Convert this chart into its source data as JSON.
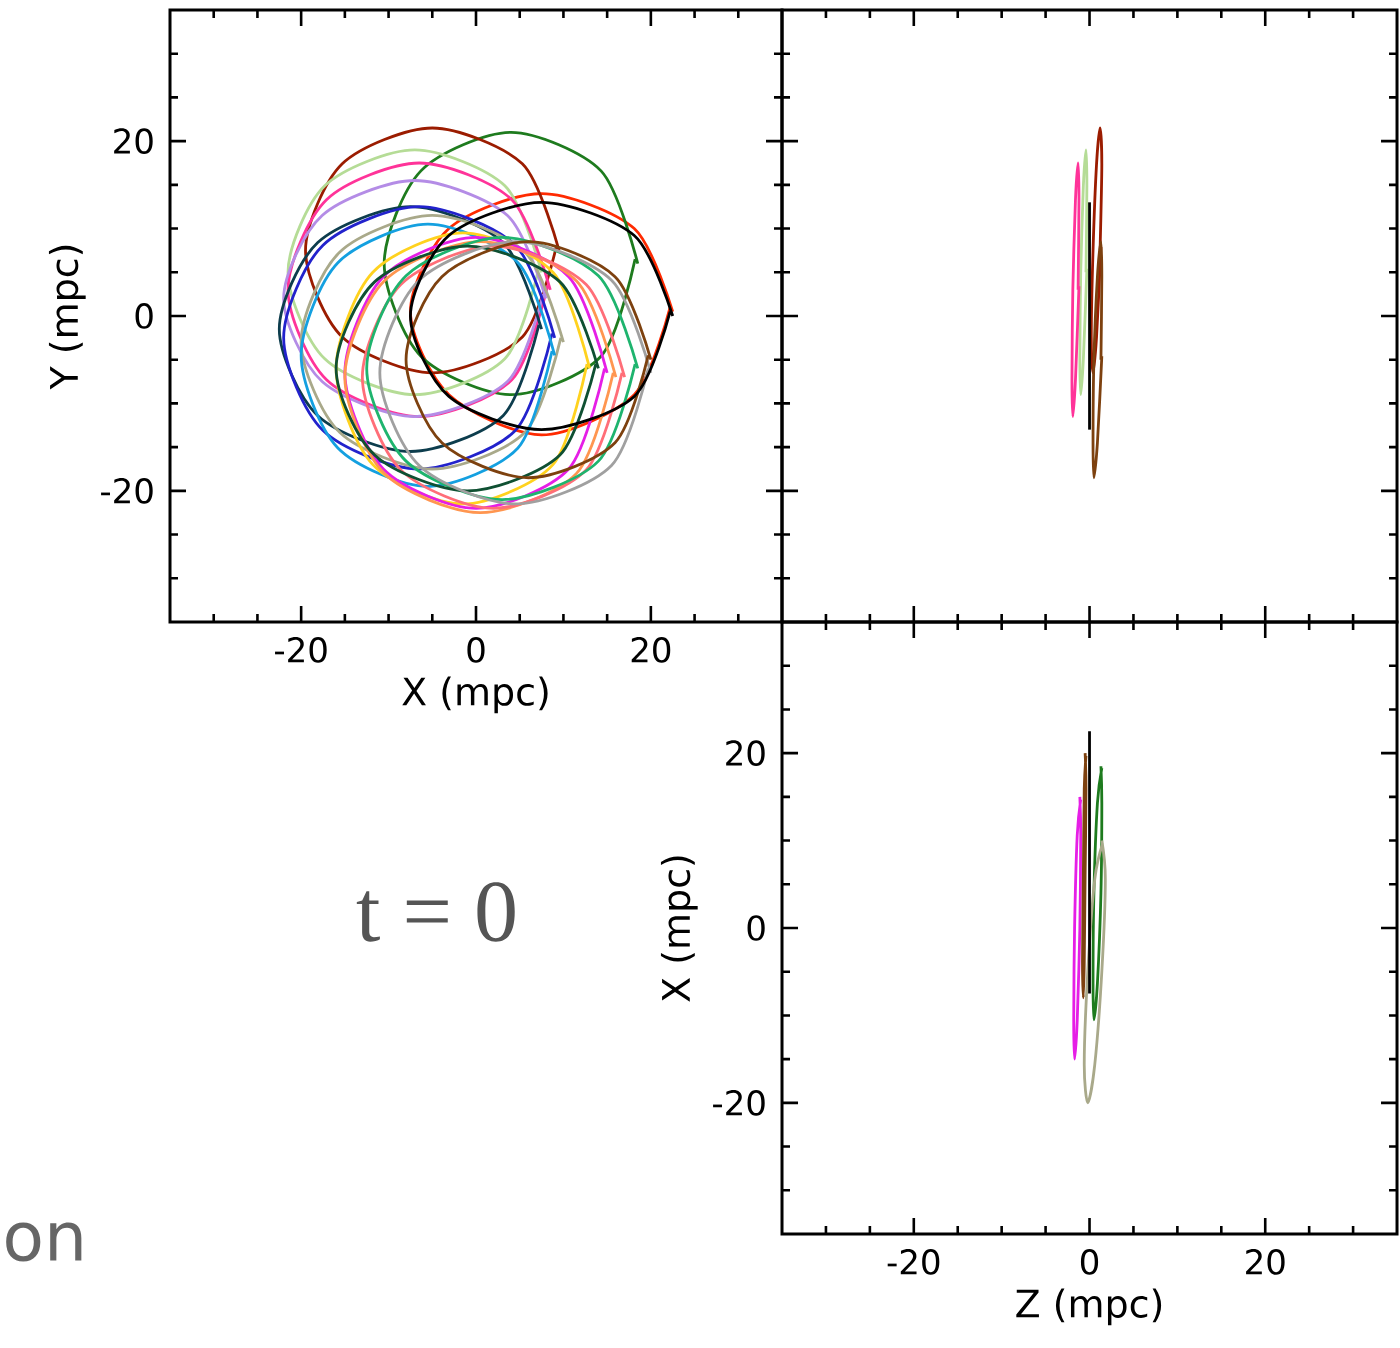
{
  "chart_data": [
    {
      "type": "line",
      "xlabel": "X  (mpc)",
      "ylabel": "Y  (mpc)",
      "xlim": [
        -35,
        35
      ],
      "ylim": [
        -35,
        35
      ],
      "xticks": [
        {
          "value": -30,
          "label": null
        },
        {
          "value": -25,
          "label": null
        },
        -20,
        {
          "value": -15,
          "label": null
        },
        {
          "value": -10,
          "label": null
        },
        {
          "value": -5,
          "label": null
        },
        0,
        {
          "value": 5,
          "label": null
        },
        {
          "value": 10,
          "label": null
        },
        {
          "value": 15,
          "label": null
        },
        20,
        {
          "value": 25,
          "label": null
        },
        {
          "value": 30,
          "label": null
        }
      ],
      "yticks": [
        {
          "value": -30,
          "label": null
        },
        {
          "value": -25,
          "label": null
        },
        -20,
        {
          "value": -15,
          "label": null
        },
        {
          "value": -10,
          "label": null
        },
        {
          "value": -5,
          "label": null
        },
        0,
        {
          "value": 5,
          "label": null
        },
        {
          "value": 10,
          "label": null
        },
        {
          "value": 15,
          "label": null
        },
        20,
        {
          "value": 25,
          "label": null
        },
        {
          "value": 30,
          "label": null
        }
      ],
      "series": [
        {
          "color": "#ff2a00",
          "x": [
            22.5,
            18.1,
            7.5,
            -3.1,
            -7.5,
            -3.1,
            7.5,
            18.1,
            22.2
          ],
          "values": [
            0.5,
            10,
            14,
            10,
            0.5,
            -9,
            -13.6,
            -9,
            1
          ]
        },
        {
          "color": "#1e7b1e",
          "x": [
            18.5,
            14.3,
            4,
            -6.3,
            -10.5,
            -6.3,
            4,
            14.3,
            18.2
          ],
          "values": [
            6,
            16.6,
            21,
            16.6,
            6,
            -4.6,
            -9,
            -4.6,
            6.5
          ]
        },
        {
          "color": "#9b1c00",
          "x": [
            9.5,
            5.3,
            -5,
            -15.3,
            -19.5,
            -15.3,
            -5,
            5.3,
            9.2
          ],
          "values": [
            7.5,
            17.4,
            21.5,
            17.4,
            7.5,
            -2.4,
            -6.5,
            -2.4,
            8
          ]
        },
        {
          "color": "#b5dc96",
          "x": [
            7.5,
            3.3,
            -7,
            -17.3,
            -21.5,
            -17.3,
            -7,
            3.3,
            7.2
          ],
          "values": [
            5,
            14.9,
            19,
            14.9,
            5,
            -4.9,
            -9,
            -4.9,
            5.5
          ]
        },
        {
          "color": "#ff3399",
          "x": [
            8.5,
            4.1,
            -6.5,
            -17.1,
            -21.5,
            -17.1,
            -6.5,
            4.1,
            8.2
          ],
          "values": [
            3,
            13.3,
            17.5,
            13.3,
            3,
            -7.3,
            -11.5,
            -7.3,
            3.5
          ]
        },
        {
          "color": "#b48ce6",
          "x": [
            8,
            3.6,
            -7,
            -17.6,
            -22,
            -17.6,
            -7,
            3.6,
            7.7
          ],
          "values": [
            2,
            11.5,
            15.5,
            11.5,
            2,
            -7.5,
            -11.5,
            -7.5,
            2.5
          ]
        },
        {
          "color": "#0d3d4d",
          "x": [
            7.5,
            3.1,
            -7.5,
            -18.1,
            -22.5,
            -18.1,
            -7.5,
            3.1,
            7.2
          ],
          "values": [
            -1.5,
            8.4,
            12.5,
            8.4,
            -1.5,
            -11.4,
            -15.5,
            -11.4,
            -1
          ]
        },
        {
          "color": "#2222cc",
          "x": [
            9,
            4.5,
            -6.5,
            -17.5,
            -22,
            -17.5,
            -6.5,
            4.5,
            8.7
          ],
          "values": [
            -2.5,
            8.1,
            12.5,
            8.1,
            -2.5,
            -13.1,
            -17.5,
            -13.1,
            -2
          ]
        },
        {
          "color": "#a9a98a",
          "x": [
            10,
            5.6,
            -5,
            -15.6,
            -20,
            -15.6,
            -5,
            5.6,
            9.7
          ],
          "values": [
            -3,
            7.3,
            11.5,
            7.3,
            -3,
            -13.3,
            -17.5,
            -13.3,
            -2.5
          ]
        },
        {
          "color": "#14a0e0",
          "x": [
            9,
            4.8,
            -5.5,
            -15.8,
            -20,
            -15.8,
            -5.5,
            4.8,
            8.7
          ],
          "values": [
            -4.5,
            6.1,
            10.5,
            6.1,
            -4.5,
            -15.1,
            -19.5,
            -15.1,
            -4
          ]
        },
        {
          "color": "#ffd21e",
          "x": [
            13,
            8.8,
            -1.5,
            -11.8,
            -16,
            -11.8,
            -1.5,
            8.8,
            12.7
          ],
          "values": [
            -6,
            5,
            9.5,
            5,
            -6,
            -17,
            -21.5,
            -17,
            -5.5
          ]
        },
        {
          "color": "#e61ee6",
          "x": [
            15,
            10.6,
            0,
            -10.6,
            -15,
            -10.6,
            0,
            10.6,
            14.7
          ],
          "values": [
            -6.5,
            4.5,
            9,
            4.5,
            -6.5,
            -17.5,
            -22,
            -17.5,
            -6
          ]
        },
        {
          "color": "#ff9650",
          "x": [
            16,
            11.5,
            0.5,
            -10.5,
            -15,
            -10.5,
            0.5,
            11.5,
            15.7
          ],
          "values": [
            -7,
            4,
            8.5,
            4,
            -7,
            -18,
            -22.5,
            -18,
            -6.5
          ]
        },
        {
          "color": "#ff6e78",
          "x": [
            17,
            12.6,
            2,
            -8.6,
            -13,
            -8.6,
            2,
            12.6,
            16.7
          ],
          "values": [
            -7,
            3.6,
            8,
            3.6,
            -7,
            -17.6,
            -22,
            -17.6,
            -6.5
          ]
        },
        {
          "color": "#1eb46e",
          "x": [
            18.5,
            14,
            3,
            -8,
            -12.5,
            -8,
            3,
            14,
            18.2
          ],
          "values": [
            -6,
            4.6,
            9,
            4.6,
            -6,
            -16.6,
            -21,
            -16.6,
            -5.5
          ]
        },
        {
          "color": "#0f5032",
          "x": [
            14,
            9.6,
            -1,
            -11.6,
            -16,
            -11.6,
            -1,
            9.6,
            13.7
          ],
          "values": [
            -6,
            3.9,
            8,
            3.9,
            -6,
            -15.9,
            -20,
            -15.9,
            -5.5
          ]
        },
        {
          "color": "#a0a0a0",
          "x": [
            20,
            15.5,
            4.5,
            -6.5,
            -11,
            -6.5,
            4.5,
            15.5,
            19.7
          ],
          "values": [
            -6.5,
            4.1,
            8.5,
            4.1,
            -6.5,
            -17.1,
            -21.5,
            -17.1,
            -6
          ]
        },
        {
          "color": "#7d410f",
          "x": [
            20,
            15.9,
            6,
            -3.9,
            -8,
            -3.9,
            6,
            15.9,
            19.7
          ],
          "values": [
            -5,
            4.5,
            8.5,
            4.5,
            -5,
            -14.5,
            -18.5,
            -14.5,
            -4.5
          ]
        },
        {
          "color": "#000000",
          "x": [
            22.5,
            18.1,
            7.5,
            -3.1,
            -7.5,
            -3.1,
            7.5,
            18.1,
            22.2
          ],
          "values": [
            0,
            9.2,
            13,
            9.2,
            0,
            -9.2,
            -13,
            -9.2,
            0.5
          ]
        }
      ]
    },
    {
      "type": "line",
      "tick_labels": false,
      "xlim": [
        -35,
        35
      ],
      "ylim": [
        -35,
        35
      ],
      "xticks": [
        {
          "value": -30,
          "label": null
        },
        {
          "value": -25,
          "label": null
        },
        -20,
        {
          "value": -15,
          "label": null
        },
        {
          "value": -10,
          "label": null
        },
        {
          "value": -5,
          "label": null
        },
        0,
        {
          "value": 5,
          "label": null
        },
        {
          "value": 10,
          "label": null
        },
        {
          "value": 15,
          "label": null
        },
        20,
        {
          "value": 25,
          "label": null
        },
        {
          "value": 30,
          "label": null
        }
      ],
      "yticks": [
        {
          "value": -30,
          "label": null
        },
        {
          "value": -25,
          "label": null
        },
        -20,
        {
          "value": -15,
          "label": null
        },
        {
          "value": -10,
          "label": null
        },
        {
          "value": -5,
          "label": null
        },
        0,
        {
          "value": 5,
          "label": null
        },
        {
          "value": 10,
          "label": null
        },
        {
          "value": 15,
          "label": null
        },
        20,
        {
          "value": 25,
          "label": null
        },
        {
          "value": 30,
          "label": null
        }
      ],
      "series": [
        {
          "color": "#9b1c00",
          "x": [
            1.2,
            1.4,
            1.2,
            0.8,
            0.4,
            0.2,
            0.4,
            0.8,
            1.3
          ],
          "values": [
            7.5,
            17.4,
            21.5,
            17.4,
            7.5,
            -2.4,
            -6.5,
            -2.4,
            7.9
          ]
        },
        {
          "color": "#b5dc96",
          "x": [
            -0.4,
            -0.3,
            -0.4,
            -0.7,
            -1,
            -1.1,
            -1,
            -0.7,
            -0.3
          ],
          "values": [
            5,
            14.9,
            19,
            14.9,
            5,
            -4.9,
            -9,
            -4.9,
            5.4
          ]
        },
        {
          "color": "#ff3399",
          "x": [
            -1.3,
            -1.2,
            -1.3,
            -1.6,
            -1.9,
            -2,
            -1.9,
            -1.6,
            -1.2
          ],
          "values": [
            3,
            13.3,
            17.5,
            13.3,
            3,
            -7.3,
            -11.5,
            -7.3,
            3.4
          ]
        },
        {
          "color": "#7d410f",
          "x": [
            1.3,
            1.4,
            1.3,
            0.9,
            0.5,
            0.4,
            0.5,
            0.9,
            1.4
          ],
          "values": [
            -5,
            4.5,
            8.5,
            4.5,
            -5,
            -14.5,
            -18.5,
            -14.5,
            -4.6
          ]
        },
        {
          "color": "#000000",
          "x": [
            0,
            0,
            0,
            0,
            0
          ],
          "values": [
            13,
            9.2,
            0,
            -9.2,
            -13
          ]
        }
      ]
    },
    {
      "type": "line",
      "xlabel": "Z  (mpc)",
      "ylabel": "X  (mpc)",
      "xlim": [
        -35,
        35
      ],
      "ylim": [
        -35,
        35
      ],
      "xticks": [
        {
          "value": -30,
          "label": null
        },
        {
          "value": -25,
          "label": null
        },
        -20,
        {
          "value": -15,
          "label": null
        },
        {
          "value": -10,
          "label": null
        },
        {
          "value": -5,
          "label": null
        },
        0,
        {
          "value": 5,
          "label": null
        },
        {
          "value": 10,
          "label": null
        },
        {
          "value": 15,
          "label": null
        },
        20,
        {
          "value": 25,
          "label": null
        },
        {
          "value": 30,
          "label": null
        }
      ],
      "yticks": [
        {
          "value": -30,
          "label": null
        },
        {
          "value": -25,
          "label": null
        },
        -20,
        {
          "value": -15,
          "label": null
        },
        {
          "value": -10,
          "label": null
        },
        {
          "value": -5,
          "label": null
        },
        0,
        {
          "value": 5,
          "label": null
        },
        {
          "value": 10,
          "label": null
        },
        {
          "value": 15,
          "label": null
        },
        20,
        {
          "value": 25,
          "label": null
        },
        {
          "value": 30,
          "label": null
        }
      ],
      "series": [
        {
          "color": "#1e7b1e",
          "x": [
            1.3,
            1.4,
            1.3,
            0.9,
            0.5,
            0.4,
            0.5,
            0.9,
            1.4
          ],
          "values": [
            18.5,
            14.3,
            4,
            -6.3,
            -10.5,
            -6.3,
            4,
            14.3,
            18.3
          ]
        },
        {
          "color": "#e61ee6",
          "x": [
            -1.1,
            -1,
            -1.1,
            -1.4,
            -1.7,
            -1.8,
            -1.7,
            -1.4,
            -1
          ],
          "values": [
            15,
            10.6,
            0,
            -10.6,
            -15,
            -10.6,
            0,
            10.6,
            14.7
          ]
        },
        {
          "color": "#a9a98a",
          "x": [
            1.4,
            1.8,
            1.4,
            0.6,
            -0.2,
            -0.6,
            -0.2,
            0.6,
            1.5
          ],
          "values": [
            10,
            5.6,
            -5,
            -15.6,
            -20,
            -15.6,
            -5,
            5.6,
            9.7
          ]
        },
        {
          "color": "#7d410f",
          "x": [
            -0.5,
            -0.4,
            -0.5,
            -0.6,
            -0.7,
            -0.8,
            -0.7,
            -0.6,
            -0.4
          ],
          "values": [
            20,
            15.9,
            6,
            -3.9,
            -8,
            -3.9,
            6,
            15.9,
            19.7
          ]
        },
        {
          "color": "#000000",
          "x": [
            0,
            0,
            0,
            0,
            0
          ],
          "values": [
            22.5,
            18.1,
            7.5,
            -3.1,
            -7.5
          ]
        }
      ]
    },
    {
      "type": "other",
      "annotations": [
        "t = 0",
        "on"
      ]
    }
  ]
}
